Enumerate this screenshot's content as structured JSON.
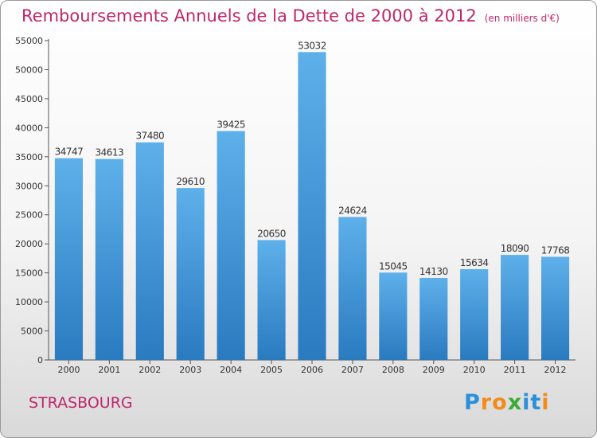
{
  "title": "Remboursements Annuels de la Dette de 2000 à 2012",
  "unit_note": "(en milliers d'€)",
  "city": "STRASBOURG",
  "logo": {
    "text": "Proxiti",
    "letters": [
      {
        "ch": "P",
        "color": "#2b8fd9"
      },
      {
        "ch": "r",
        "color": "#f28a1c"
      },
      {
        "ch": "o",
        "color": "#f28a1c"
      },
      {
        "ch": "x",
        "color": "#3aaa35"
      },
      {
        "ch": "i",
        "color": "#2b8fd9"
      },
      {
        "ch": "t",
        "color": "#2b8fd9"
      },
      {
        "ch": "i",
        "color": "#f28a1c"
      }
    ]
  },
  "colors": {
    "title": "#c0266a",
    "bar_top": "#5eb0ea",
    "bar_bottom": "#2a7ac0"
  },
  "chart_data": {
    "type": "bar",
    "title": "Remboursements Annuels de la Dette de 2000 à 2012",
    "categories": [
      "2000",
      "2001",
      "2002",
      "2003",
      "2004",
      "2005",
      "2006",
      "2007",
      "2008",
      "2009",
      "2010",
      "2011",
      "2012"
    ],
    "values": [
      34747,
      34613,
      37480,
      29610,
      39425,
      20650,
      53032,
      24624,
      15045,
      14130,
      15634,
      18090,
      17768
    ],
    "ylim": [
      0,
      55000
    ],
    "yticks": [
      0,
      5000,
      10000,
      15000,
      20000,
      25000,
      30000,
      35000,
      40000,
      45000,
      50000,
      55000
    ],
    "xlabel": "",
    "ylabel": "",
    "grid": false,
    "legend": "none"
  }
}
